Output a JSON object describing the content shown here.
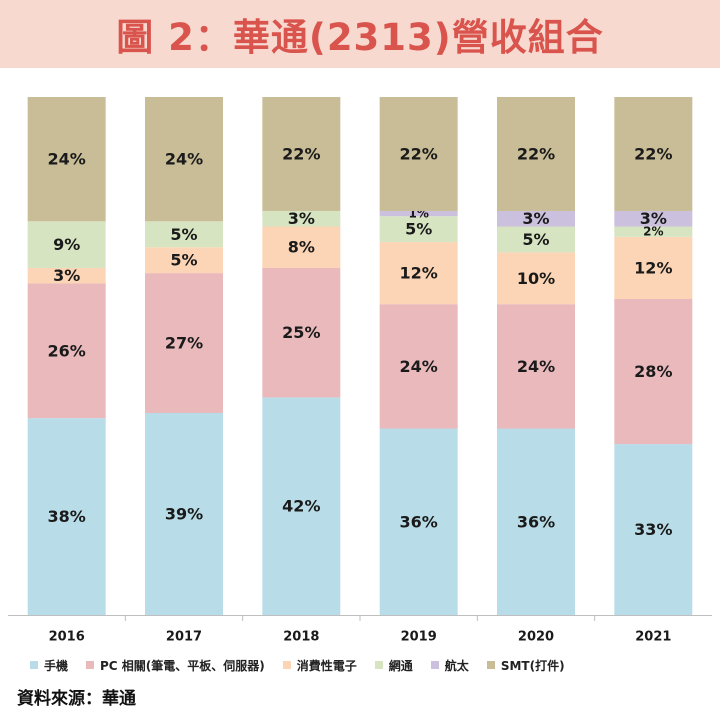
{
  "title": "圖 2：華通(2313)營收組合",
  "source": "資料來源：華通",
  "chart_data": {
    "type": "bar",
    "stacked": true,
    "percent": true,
    "categories": [
      "2016",
      "2017",
      "2018",
      "2019",
      "2020",
      "2021"
    ],
    "series": [
      {
        "name": "手機",
        "color": "#b9dde8",
        "values": [
          38,
          39,
          42,
          36,
          36,
          33
        ]
      },
      {
        "name": "PC 相關(筆電、平板、伺服器)",
        "color": "#e9b9bc",
        "values": [
          26,
          27,
          25,
          24,
          24,
          28
        ]
      },
      {
        "name": "消費性電子",
        "color": "#fbd5b5",
        "values": [
          3,
          5,
          8,
          12,
          10,
          12
        ]
      },
      {
        "name": "網通",
        "color": "#d7e4c2",
        "values": [
          9,
          5,
          3,
          5,
          5,
          2
        ]
      },
      {
        "name": "航太",
        "color": "#cbc0dd",
        "values": [
          0,
          0,
          0,
          1,
          3,
          3
        ]
      },
      {
        "name": "SMT(打件)",
        "color": "#c9bd97",
        "values": [
          24,
          24,
          22,
          22,
          22,
          22
        ]
      }
    ],
    "labels": [
      [
        "38%",
        "39%",
        "42%",
        "36%",
        "36%",
        "33%"
      ],
      [
        "26%",
        "27%",
        "25%",
        "24%",
        "24%",
        "28%"
      ],
      [
        "3%",
        "5%",
        "8%",
        "12%",
        "10%",
        "12%"
      ],
      [
        "9%",
        "5%",
        "3%",
        "5%",
        "5%",
        "2%"
      ],
      [
        "",
        "",
        "",
        "1%",
        "3%",
        "3%"
      ],
      [
        "24%",
        "24%",
        "22%",
        "22%",
        "22%",
        "22%"
      ]
    ],
    "ylim": [
      0,
      100
    ],
    "legend_position": "bottom"
  }
}
